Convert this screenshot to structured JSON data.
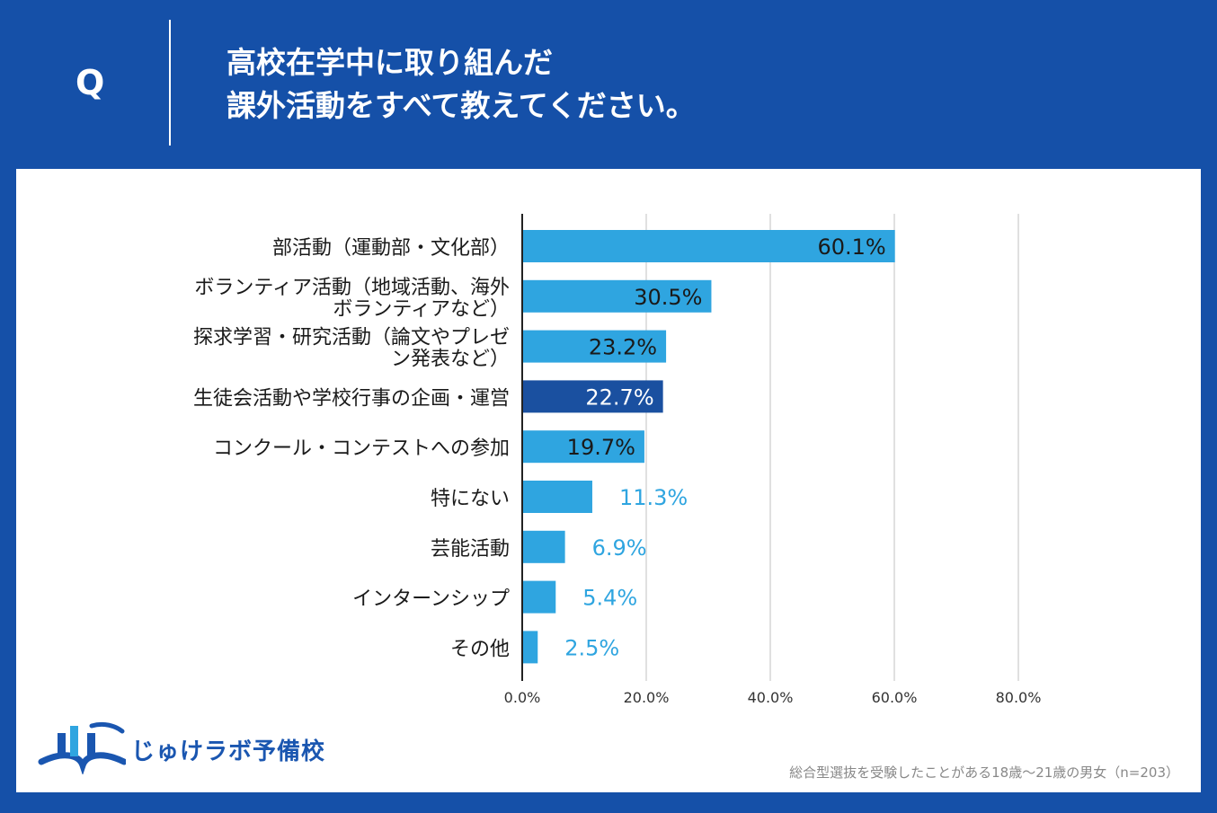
{
  "header": {
    "q_label": "Q",
    "question_line1": "高校在学中に取り組んだ",
    "question_line2": "課外活動をすべて教えてください。"
  },
  "chart_data": {
    "type": "bar",
    "orientation": "horizontal",
    "categories": [
      [
        "部活動（運動部・文化部）"
      ],
      [
        "ボランティア活動（地域活動、海外",
        "ボランティアなど）"
      ],
      [
        "探求学習・研究活動（論文やプレゼ",
        "ン発表など）"
      ],
      [
        "生徒会活動や学校行事の企画・運営"
      ],
      [
        "コンクール・コンテストへの参加"
      ],
      [
        "特にない"
      ],
      [
        "芸能活動"
      ],
      [
        "インターンシップ"
      ],
      [
        "その他"
      ]
    ],
    "values": [
      60.1,
      30.5,
      23.2,
      22.7,
      19.7,
      11.3,
      6.9,
      5.4,
      2.5
    ],
    "value_labels": [
      "60.1%",
      "30.5%",
      "23.2%",
      "22.7%",
      "19.7%",
      "11.3%",
      "6.9%",
      "5.4%",
      "2.5%"
    ],
    "highlight_index": 3,
    "xlim": [
      0,
      80
    ],
    "x_ticks": [
      0,
      20,
      40,
      60,
      80
    ],
    "x_tick_labels": [
      "0.0%",
      "20.0%",
      "40.0%",
      "60.0%",
      "80.0%"
    ],
    "grid": true,
    "colors": {
      "bar": "#2fa5e0",
      "bar_highlight": "#1a50a0",
      "label_inside_dark": "#1a1a1a",
      "label_inside_light": "#ffffff",
      "label_outside": "#2fa5e0",
      "grid": "#cccccc"
    }
  },
  "footer": {
    "logo_text": "じゅけラボ予備校",
    "note": "総合型選抜を受験したことがある18歳〜21歳の男女（n=203）"
  },
  "colors": {
    "background": "#1550a8",
    "panel": "#ffffff",
    "logo": "#1a56b0"
  }
}
